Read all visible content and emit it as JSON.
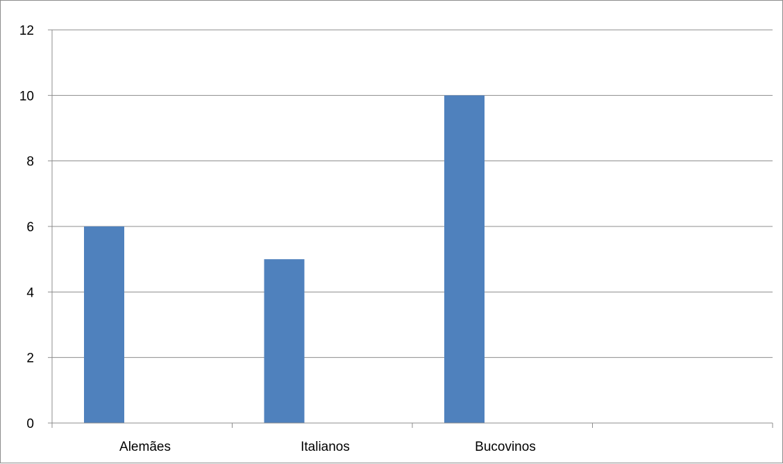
{
  "chart_data": {
    "type": "bar",
    "categories": [
      "Alemães",
      "Italianos",
      "Bucovinos",
      ""
    ],
    "series": [
      {
        "values": [
          6,
          5,
          10,
          null
        ]
      }
    ],
    "title": "",
    "xlabel": "",
    "ylabel": "",
    "ylim": [
      0,
      12
    ],
    "yticks": [
      0,
      2,
      4,
      6,
      8,
      10,
      12
    ],
    "grid": true,
    "legend": "none",
    "colors": {
      "bar": "#4f81bd",
      "grid": "#8c8c8c",
      "axis": "#8c8c8c"
    }
  }
}
